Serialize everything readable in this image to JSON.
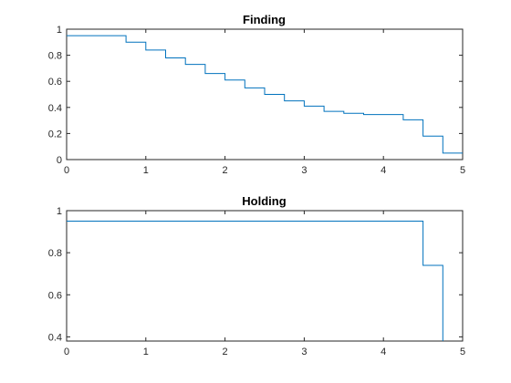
{
  "chart_data": [
    {
      "type": "line",
      "step": "post",
      "title": "Finding",
      "xlabel": "",
      "ylabel": "",
      "xlim": [
        0,
        5
      ],
      "ylim": [
        0,
        1
      ],
      "xticks": [
        0,
        1,
        2,
        3,
        4,
        5
      ],
      "yticks": [
        0,
        0.2,
        0.4,
        0.6,
        0.8,
        1
      ],
      "ytick_labels": [
        "0",
        "0.2",
        "0.4",
        "0.6",
        "0.8",
        "1"
      ],
      "grid": false,
      "color": "#0072BD",
      "x": [
        0,
        0.75,
        1.0,
        1.25,
        1.5,
        1.75,
        2.0,
        2.25,
        2.5,
        2.75,
        3.0,
        3.25,
        3.5,
        3.75,
        4.0,
        4.25,
        4.5,
        4.75
      ],
      "y": [
        0.95,
        0.9,
        0.84,
        0.78,
        0.73,
        0.66,
        0.61,
        0.55,
        0.5,
        0.45,
        0.41,
        0.37,
        0.355,
        0.345,
        0.345,
        0.305,
        0.18,
        0.05
      ],
      "x_end": 5
    },
    {
      "type": "line",
      "step": "post",
      "title": "Holding",
      "xlabel": "",
      "ylabel": "",
      "xlim": [
        0,
        5
      ],
      "ylim": [
        0.38,
        1
      ],
      "xticks": [
        0,
        1,
        2,
        3,
        4,
        5
      ],
      "yticks": [
        0.4,
        0.6,
        0.8,
        1
      ],
      "ytick_labels": [
        "0.4",
        "0.6",
        "0.8",
        "1"
      ],
      "grid": false,
      "color": "#0072BD",
      "x": [
        0,
        4.5,
        4.75
      ],
      "y": [
        0.95,
        0.74,
        0.38
      ],
      "x_end": 4.75
    }
  ]
}
